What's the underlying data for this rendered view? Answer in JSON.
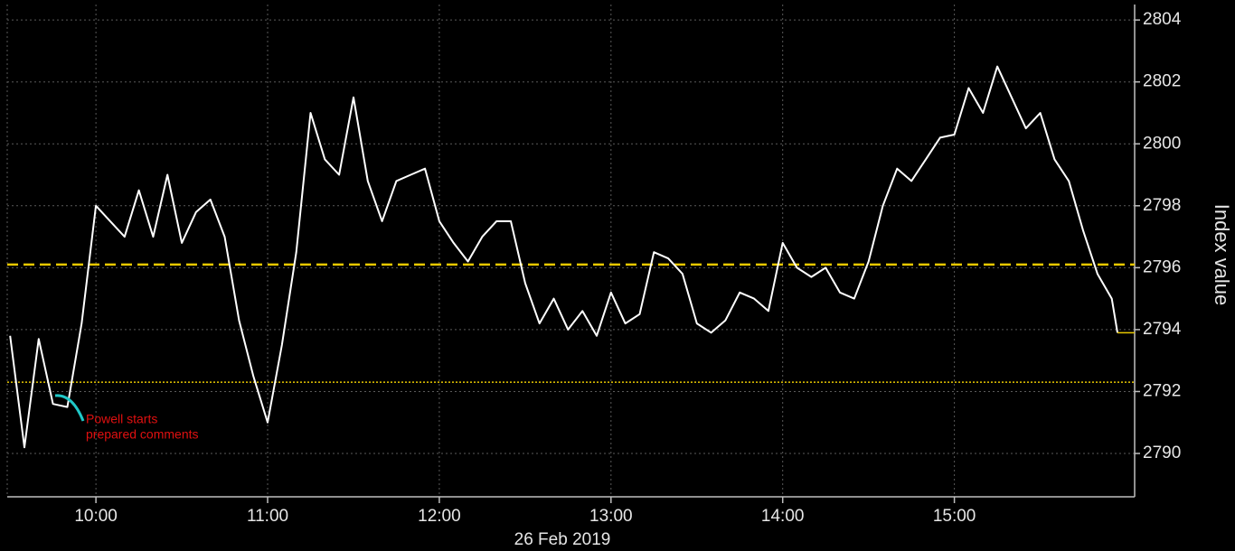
{
  "chart_data": {
    "type": "line",
    "x": [
      "09:30",
      "09:35",
      "09:40",
      "09:45",
      "09:50",
      "09:55",
      "10:00",
      "10:05",
      "10:10",
      "10:15",
      "10:20",
      "10:25",
      "10:30",
      "10:35",
      "10:40",
      "10:45",
      "10:50",
      "10:55",
      "11:00",
      "11:05",
      "11:10",
      "11:15",
      "11:20",
      "11:25",
      "11:30",
      "11:35",
      "11:40",
      "11:45",
      "11:50",
      "11:55",
      "12:00",
      "12:05",
      "12:10",
      "12:15",
      "12:20",
      "12:25",
      "12:30",
      "12:35",
      "12:40",
      "12:45",
      "12:50",
      "12:55",
      "13:00",
      "13:05",
      "13:10",
      "13:15",
      "13:20",
      "13:25",
      "13:30",
      "13:35",
      "13:40",
      "13:45",
      "13:50",
      "13:55",
      "14:00",
      "14:05",
      "14:10",
      "14:15",
      "14:20",
      "14:25",
      "14:30",
      "14:35",
      "14:40",
      "14:45",
      "14:50",
      "14:55",
      "15:00",
      "15:05",
      "15:10",
      "15:15",
      "15:20",
      "15:25",
      "15:30",
      "15:35",
      "15:40",
      "15:45",
      "15:50",
      "15:55",
      "15:57"
    ],
    "series": [
      {
        "color": "#ffffff",
        "values": [
          2793.8,
          2790.2,
          2793.7,
          2791.6,
          2791.5,
          2794.2,
          2798.0,
          2797.5,
          2797.0,
          2798.5,
          2797.0,
          2799.0,
          2796.8,
          2797.8,
          2798.2,
          2797.0,
          2794.3,
          2792.5,
          2791.0,
          2793.5,
          2796.5,
          2801.0,
          2799.5,
          2799.0,
          2801.5,
          2798.8,
          2797.5,
          2798.8,
          2799.0,
          2799.2,
          2797.5,
          2796.8,
          2796.2,
          2797.0,
          2797.5,
          2797.5,
          2795.5,
          2794.2,
          2795.0,
          2794.0,
          2794.6,
          2793.8,
          2795.2,
          2794.2,
          2794.5,
          2796.5,
          2796.3,
          2795.8,
          2794.2,
          2793.9,
          2794.3,
          2795.2,
          2795.0,
          2794.6,
          2796.8,
          2796.0,
          2795.7,
          2796.0,
          2795.2,
          2795.0,
          2796.2,
          2798.0,
          2799.2,
          2798.8,
          2799.5,
          2800.2,
          2800.3,
          2801.8,
          2801.0,
          2802.5,
          2801.5,
          2800.5,
          2801.0,
          2799.5,
          2798.8,
          2797.2,
          2795.8,
          2795.0,
          2793.9
        ]
      }
    ],
    "xlim": [
      "09:29",
      "16:03"
    ],
    "xticks": [
      "10:00",
      "11:00",
      "12:00",
      "13:00",
      "14:00",
      "15:00"
    ],
    "xlabel": "26 Feb 2019",
    "ylabel": "Index value",
    "ylim": [
      2788.6,
      2804.5
    ],
    "yticks": [
      2790,
      2792,
      2794,
      2796,
      2798,
      2800,
      2802,
      2804
    ],
    "grid": true,
    "hlines": [
      {
        "value": 2796.1,
        "color": "#e8c800",
        "style": "dashed"
      },
      {
        "value": 2792.3,
        "color": "#e8c800",
        "style": "dotted"
      }
    ],
    "annotation": {
      "lines": [
        "Powell starts",
        "prepared comments"
      ],
      "color": "#e01010",
      "arrow_color": "#20c8c8"
    }
  }
}
